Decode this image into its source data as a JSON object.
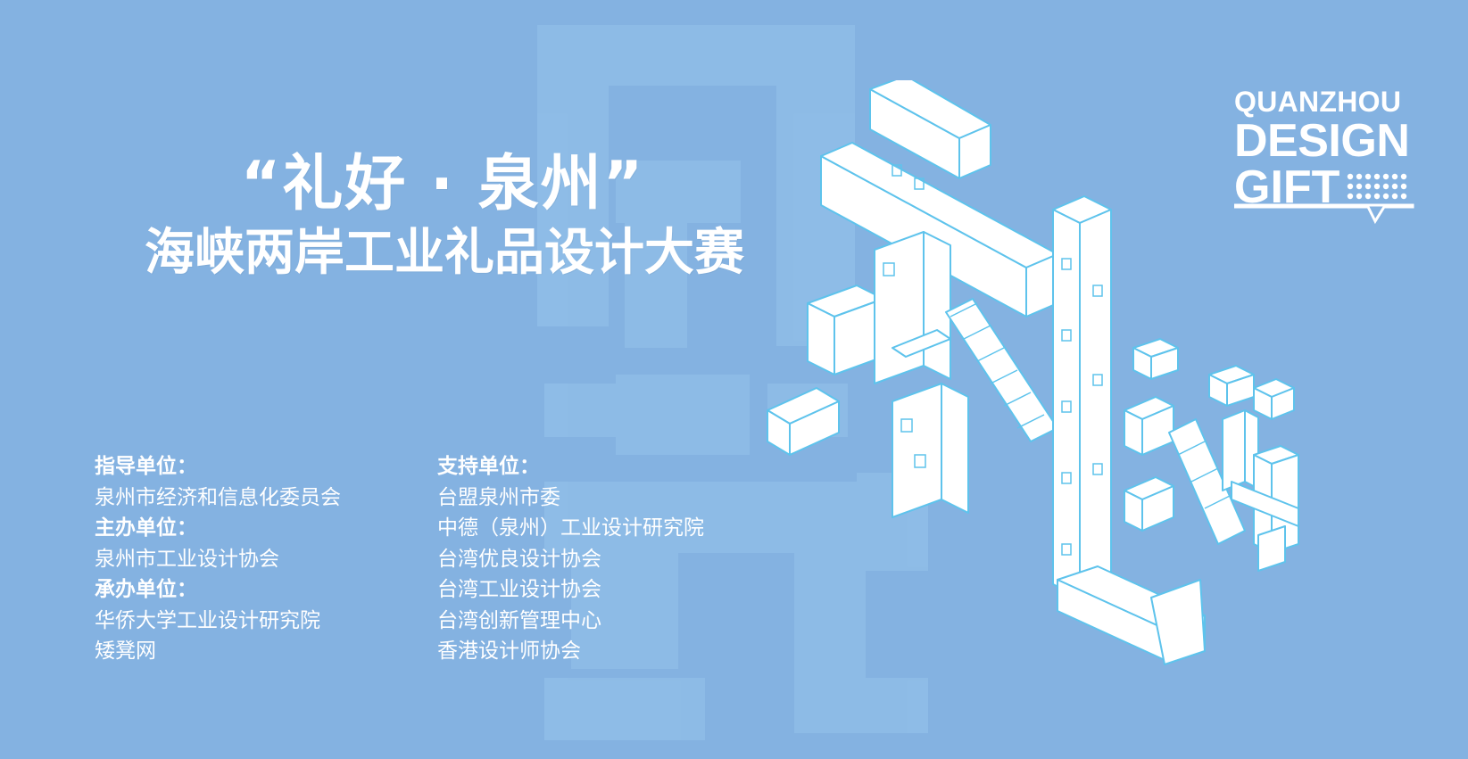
{
  "title": {
    "line1": "“礼好 · 泉州”",
    "line2": "海峡两岸工业礼品设计大赛"
  },
  "logo": {
    "line1": "QUANZHOU",
    "line2": "DESIGN",
    "line3": "GIFT"
  },
  "organizers": {
    "left": {
      "guidance_label": "指导单位：",
      "guidance": [
        "泉州市经济和信息化委员会"
      ],
      "host_label": "主办单位：",
      "host": [
        "泉州市工业设计协会"
      ],
      "organizer_label": "承办单位：",
      "organizer": [
        "华侨大学工业设计研究院",
        "矮凳网"
      ]
    },
    "right": {
      "support_label": "支持单位：",
      "support": [
        "台盟泉州市委",
        "中德（泉州）工业设计研究院",
        "台湾优良设计协会",
        "台湾工业设计协会",
        "台湾创新管理中心",
        "香港设计师协会"
      ]
    }
  },
  "colors": {
    "background": "#84b2e1",
    "text": "#ffffff",
    "art_outline": "#5ec3ec",
    "watermark": "#95c0e8"
  }
}
